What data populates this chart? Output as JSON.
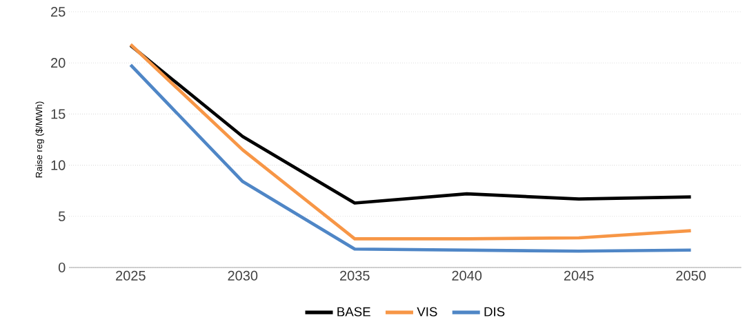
{
  "chart_data": {
    "type": "line",
    "ylabel": "Raise reg ($/MWh)",
    "categories": [
      "2025",
      "2030",
      "2035",
      "2040",
      "2045",
      "2050"
    ],
    "series": [
      {
        "name": "BASE",
        "color": "#000000",
        "values": [
          21.7,
          12.8,
          6.3,
          7.2,
          6.7,
          6.9
        ]
      },
      {
        "name": "VIS",
        "color": "#f79646",
        "values": [
          21.8,
          11.5,
          2.8,
          2.8,
          2.9,
          3.6
        ]
      },
      {
        "name": "DIS",
        "color": "#4f86c6",
        "values": [
          19.8,
          8.4,
          1.8,
          1.7,
          1.6,
          1.7
        ]
      }
    ],
    "ylim": [
      0,
      25
    ],
    "yticks": [
      0,
      5,
      10,
      15,
      20,
      25
    ],
    "grid": "y",
    "legend": "bottom",
    "marker": "none",
    "line_style": "solid"
  }
}
